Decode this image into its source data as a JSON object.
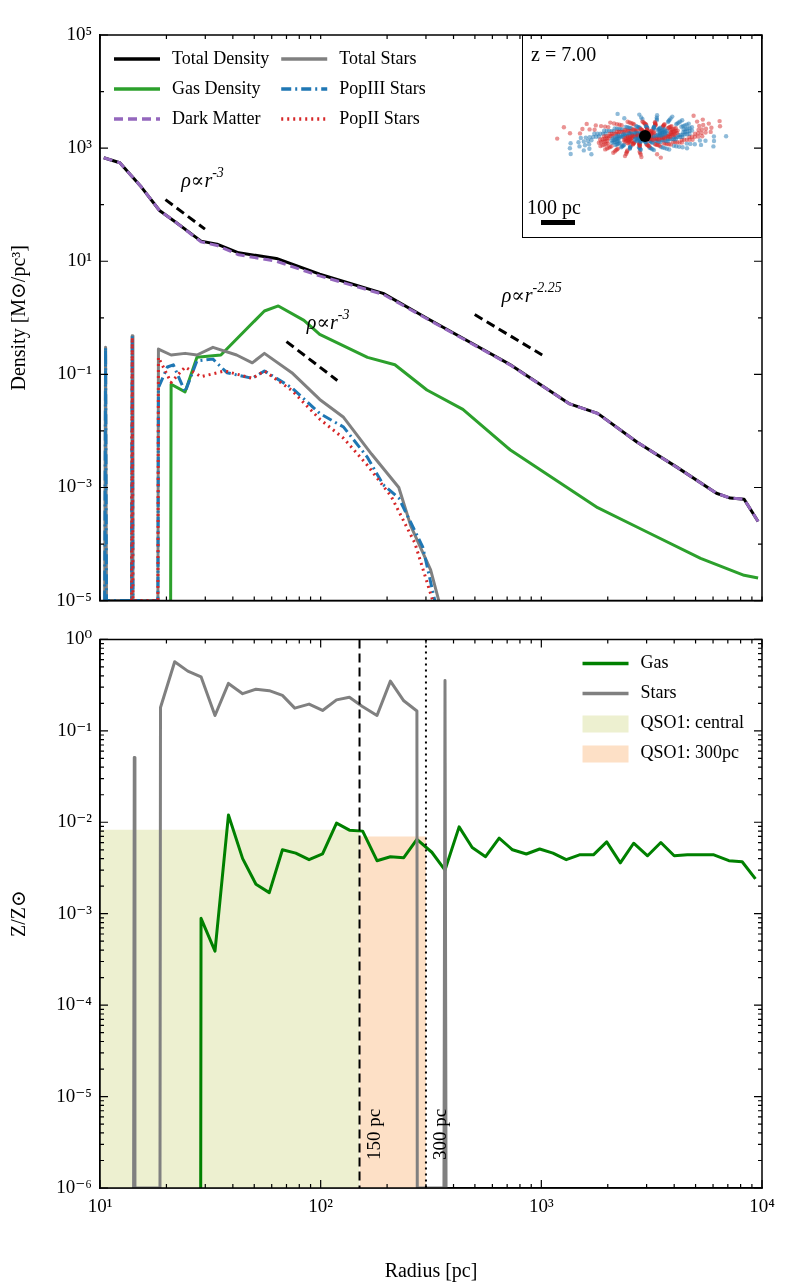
{
  "chart_data": [
    {
      "type": "line",
      "ylabel": "Density [M⊙/pc³]",
      "log": "xy",
      "tick_labels": "y",
      "legend": "top left",
      "xlim": [
        10,
        10000
      ],
      "ylim": [
        1e-05,
        100000
      ],
      "xticks": [
        {
          "value": 10,
          "label": null
        },
        {
          "value": 20,
          "label": null
        },
        {
          "value": 30,
          "label": null
        },
        {
          "value": 40,
          "label": null
        },
        {
          "value": 50,
          "label": null
        },
        {
          "value": 60,
          "label": null
        },
        {
          "value": 70,
          "label": null
        },
        {
          "value": 80,
          "label": null
        },
        {
          "value": 90,
          "label": null
        },
        {
          "value": 100,
          "label": null
        },
        {
          "value": 200,
          "label": null
        },
        {
          "value": 300,
          "label": null
        },
        {
          "value": 400,
          "label": null
        },
        {
          "value": 500,
          "label": null
        },
        {
          "value": 600,
          "label": null
        },
        {
          "value": 700,
          "label": null
        },
        {
          "value": 800,
          "label": null
        },
        {
          "value": 900,
          "label": null
        },
        {
          "value": 1000,
          "label": null
        },
        {
          "value": 2000,
          "label": null
        },
        {
          "value": 3000,
          "label": null
        },
        {
          "value": 4000,
          "label": null
        },
        {
          "value": 5000,
          "label": null
        },
        {
          "value": 6000,
          "label": null
        },
        {
          "value": 7000,
          "label": null
        },
        {
          "value": 8000,
          "label": null
        },
        {
          "value": 9000,
          "label": null
        },
        {
          "value": 10000,
          "label": null
        }
      ],
      "yticks": [
        {
          "value": 1e-05,
          "label": "10⁻⁵"
        },
        {
          "value": 0.0001,
          "label": null
        },
        {
          "value": 0.001,
          "label": "10⁻³"
        },
        {
          "value": 0.01,
          "label": null
        },
        {
          "value": 0.1,
          "label": "10⁻¹"
        },
        {
          "value": 1,
          "label": null
        },
        {
          "value": 10,
          "label": "10¹"
        },
        {
          "value": 100,
          "label": null
        },
        {
          "value": 1000,
          "label": "10³"
        },
        {
          "value": 10000,
          "label": null
        },
        {
          "value": 100000,
          "label": "10⁵"
        }
      ],
      "series": [
        {
          "name": "Total Density",
          "type": "line",
          "color": "#000000",
          "line_style": "solid",
          "x": [
            10.4,
            12.3,
            15.4,
            18.6,
            21.9,
            28.7,
            33.9,
            42.5,
            63,
            99,
            192,
            303,
            724,
            1345,
            1800,
            2720,
            4110,
            6220,
            7180,
            8300,
            9600
          ],
          "values": [
            676,
            550,
            205,
            79,
            50,
            22.7,
            20,
            14.1,
            11.2,
            5.9,
            2.7,
            0.98,
            0.148,
            0.03,
            0.0204,
            0.0063,
            0.00229,
            0.00079,
            0.00065,
            0.00062,
            0.00025
          ]
        },
        {
          "name": "Gas Density",
          "type": "line",
          "color": "#2ca02c",
          "line_style": "solid",
          "x": [
            20.9,
            21,
            24.3,
            27.5,
            35.3,
            55.6,
            64.3,
            84,
            99,
            163,
            217,
            303,
            441,
            724,
            1800,
            2950,
            5270,
            8300,
            9600
          ],
          "values": [
            1e-05,
            0.067,
            0.049,
            0.2,
            0.22,
            1.32,
            1.62,
            0.9,
            0.51,
            0.2,
            0.148,
            0.053,
            0.024,
            0.0046,
            0.00044,
            0.00017,
            5.6e-05,
            2.8e-05,
            2.5e-05
          ]
        },
        {
          "name": "Dark Matter",
          "type": "line",
          "color": "#9467bd",
          "line_style": "dashed",
          "x": [
            10.4,
            12.3,
            15.4,
            18.6,
            21.9,
            28.7,
            33.9,
            42.5,
            63,
            99,
            192,
            303,
            724,
            1345,
            1800,
            2720,
            4110,
            6220,
            7180,
            8300,
            9600
          ],
          "values": [
            676,
            550,
            205,
            79,
            50,
            22,
            19,
            13,
            10,
            5.5,
            2.6,
            0.96,
            0.146,
            0.03,
            0.0203,
            0.0063,
            0.00228,
            0.00079,
            0.00065,
            0.00062,
            0.00025
          ]
        },
        {
          "name": "Total Stars",
          "type": "line",
          "color": "#808080",
          "line_style": "solid",
          "x": [
            10.5,
            10.6,
            10.7,
            13.9,
            14,
            14.1,
            18.3,
            18.4,
            21,
            24.3,
            27.5,
            32.5,
            41.6,
            49,
            55.6,
            74,
            99,
            127,
            170,
            226,
            256,
            315,
            343
          ],
          "values": [
            1e-05,
            0.3,
            1e-05,
            1e-05,
            0.48,
            1e-05,
            1e-05,
            0.28,
            0.22,
            0.235,
            0.22,
            0.3,
            0.22,
            0.16,
            0.235,
            0.107,
            0.036,
            0.0174,
            0.0039,
            0.001,
            0.00021,
            3.5e-05,
            1e-05
          ]
        },
        {
          "name": "PopIII Stars",
          "type": "line",
          "color": "#1f77b4",
          "line_style": "dashdot",
          "x": [
            10.5,
            10.6,
            10.7,
            13.9,
            14,
            14.1,
            18.3,
            18.4,
            20.2,
            21.5,
            24.3,
            27.5,
            32.5,
            37.6,
            49,
            55.6,
            74,
            99,
            127,
            163,
            192,
            226,
            290,
            329
          ],
          "values": [
            1e-05,
            0.3,
            1e-05,
            1e-05,
            0.48,
            1e-05,
            1e-05,
            0.058,
            0.135,
            0.147,
            0.049,
            0.173,
            0.186,
            0.107,
            0.085,
            0.115,
            0.058,
            0.0204,
            0.0117,
            0.0034,
            0.00112,
            0.00065,
            8.9e-05,
            1e-05
          ]
        },
        {
          "name": "PopII Stars",
          "type": "line",
          "color": "#d62728",
          "line_style": "dotted",
          "x": [
            13.9,
            14,
            14.1,
            18.3,
            18.4,
            21,
            24.3,
            28.7,
            36.8,
            49,
            55.6,
            74,
            99,
            127,
            163,
            209,
            267,
            322
          ],
          "values": [
            1e-05,
            0.45,
            1e-05,
            1e-05,
            0.2,
            0.072,
            0.135,
            0.091,
            0.115,
            0.085,
            0.115,
            0.052,
            0.0162,
            0.0074,
            0.00245,
            0.00069,
            0.000105,
            1e-05
          ]
        },
        {
          "type": "line",
          "color": "#000000",
          "line_style": "dashed",
          "x": [
            19.8,
            29.9
          ],
          "values": [
            123,
            37
          ]
        },
        {
          "type": "line",
          "color": "#000000",
          "line_style": "dashed",
          "x": [
            70,
            119
          ],
          "values": [
            0.38,
            0.078
          ]
        },
        {
          "type": "line",
          "color": "#000000",
          "line_style": "dashed",
          "x": [
            499,
            1009
          ],
          "values": [
            1.14,
            0.22
          ]
        }
      ],
      "annotations": [
        "ρ∝r$^{-3}$",
        "ρ∝r$^{-3}$",
        "ρ∝r$^{-2.25}$",
        "z = 7.00",
        "100 pc"
      ]
    },
    {
      "type": "line",
      "xlabel": "Radius [pc]",
      "ylabel": "Z/Z⊙",
      "log": "xy",
      "legend": "top right",
      "xlim": [
        10,
        10000
      ],
      "ylim": [
        1e-06,
        1
      ],
      "xticks": [
        {
          "value": 10,
          "label": "10¹"
        },
        {
          "value": 20,
          "label": null
        },
        {
          "value": 30,
          "label": null
        },
        {
          "value": 40,
          "label": null
        },
        {
          "value": 50,
          "label": null
        },
        {
          "value": 60,
          "label": null
        },
        {
          "value": 70,
          "label": null
        },
        {
          "value": 80,
          "label": null
        },
        {
          "value": 90,
          "label": null
        },
        {
          "value": 100,
          "label": "10²"
        },
        {
          "value": 200,
          "label": null
        },
        {
          "value": 300,
          "label": null
        },
        {
          "value": 400,
          "label": null
        },
        {
          "value": 500,
          "label": null
        },
        {
          "value": 600,
          "label": null
        },
        {
          "value": 700,
          "label": null
        },
        {
          "value": 800,
          "label": null
        },
        {
          "value": 900,
          "label": null
        },
        {
          "value": 1000,
          "label": "10³"
        },
        {
          "value": 2000,
          "label": null
        },
        {
          "value": 3000,
          "label": null
        },
        {
          "value": 4000,
          "label": null
        },
        {
          "value": 5000,
          "label": null
        },
        {
          "value": 6000,
          "label": null
        },
        {
          "value": 7000,
          "label": null
        },
        {
          "value": 8000,
          "label": null
        },
        {
          "value": 9000,
          "label": null
        },
        {
          "value": 10000,
          "label": "10⁴"
        }
      ],
      "yticks": [
        {
          "value": 1e-06,
          "label": "10⁻⁶"
        },
        {
          "value": 2e-06,
          "label": null
        },
        {
          "value": 3e-06,
          "label": null
        },
        {
          "value": 4e-06,
          "label": null
        },
        {
          "value": 5e-06,
          "label": null
        },
        {
          "value": 6e-06,
          "label": null
        },
        {
          "value": 7e-06,
          "label": null
        },
        {
          "value": 8e-06,
          "label": null
        },
        {
          "value": 9e-06,
          "label": null
        },
        {
          "value": 1e-05,
          "label": "10⁻⁵"
        },
        {
          "value": 2e-05,
          "label": null
        },
        {
          "value": 3e-05,
          "label": null
        },
        {
          "value": 4e-05,
          "label": null
        },
        {
          "value": 5e-05,
          "label": null
        },
        {
          "value": 6e-05,
          "label": null
        },
        {
          "value": 7e-05,
          "label": null
        },
        {
          "value": 8e-05,
          "label": null
        },
        {
          "value": 9e-05,
          "label": null
        },
        {
          "value": 0.0001,
          "label": "10⁻⁴"
        },
        {
          "value": 0.0002,
          "label": null
        },
        {
          "value": 0.0003,
          "label": null
        },
        {
          "value": 0.0004,
          "label": null
        },
        {
          "value": 0.0005,
          "label": null
        },
        {
          "value": 0.0006,
          "label": null
        },
        {
          "value": 0.0007,
          "label": null
        },
        {
          "value": 0.0008,
          "label": null
        },
        {
          "value": 0.0009,
          "label": null
        },
        {
          "value": 0.001,
          "label": "10⁻³"
        },
        {
          "value": 0.002,
          "label": null
        },
        {
          "value": 0.003,
          "label": null
        },
        {
          "value": 0.004,
          "label": null
        },
        {
          "value": 0.005,
          "label": null
        },
        {
          "value": 0.006,
          "label": null
        },
        {
          "value": 0.007,
          "label": null
        },
        {
          "value": 0.008,
          "label": null
        },
        {
          "value": 0.009,
          "label": null
        },
        {
          "value": 0.01,
          "label": "10⁻²"
        },
        {
          "value": 0.02,
          "label": null
        },
        {
          "value": 0.03,
          "label": null
        },
        {
          "value": 0.04,
          "label": null
        },
        {
          "value": 0.05,
          "label": null
        },
        {
          "value": 0.06,
          "label": null
        },
        {
          "value": 0.07,
          "label": null
        },
        {
          "value": 0.08,
          "label": null
        },
        {
          "value": 0.09,
          "label": null
        },
        {
          "value": 0.1,
          "label": "10⁻¹"
        },
        {
          "value": 0.2,
          "label": null
        },
        {
          "value": 0.3,
          "label": null
        },
        {
          "value": 0.4,
          "label": null
        },
        {
          "value": 0.5,
          "label": null
        },
        {
          "value": 0.6,
          "label": null
        },
        {
          "value": 0.7,
          "label": null
        },
        {
          "value": 0.8,
          "label": null
        },
        {
          "value": 0.9,
          "label": null
        },
        {
          "value": 1,
          "label": "10⁰"
        }
      ],
      "series": [
        {
          "name": "Gas",
          "type": "line",
          "color": "#008000",
          "line_style": "solid",
          "x": [
            28.6,
            28.7,
            33.2,
            38.2,
            44.3,
            50.9,
            58.5,
            67.1,
            77.1,
            88.6,
            102,
            118,
            135,
            155,
            180,
            207,
            238,
            273,
            319,
            366,
            424,
            486,
            559,
            644,
            740,
            855,
            983,
            1129,
            1297,
            1489,
            1722,
            1978,
            2280,
            2620,
            3030,
            3480,
            4000,
            4590,
            6050,
            7080,
            8130,
            9340
          ],
          "values": [
            1e-06,
            0.00089,
            0.00039,
            0.012,
            0.004,
            0.0021,
            0.0017,
            0.005,
            0.0046,
            0.0039,
            0.0045,
            0.0098,
            0.0082,
            0.008,
            0.0038,
            0.0042,
            0.0041,
            0.0065,
            0.0047,
            0.003,
            0.0089,
            0.0053,
            0.0042,
            0.0067,
            0.005,
            0.0045,
            0.0051,
            0.0046,
            0.0039,
            0.0044,
            0.0044,
            0.0061,
            0.0036,
            0.0059,
            0.0043,
            0.006,
            0.0043,
            0.0044,
            0.0044,
            0.0038,
            0.0037,
            0.0024
          ]
        },
        {
          "name": "Stars",
          "type": "line",
          "color": "#808080",
          "line_style": "solid",
          "x": [
            14.2,
            14.3,
            14.4,
            18.7,
            18.8,
            21.8,
            25,
            28.7,
            33.2,
            38.2,
            44.3,
            50.9,
            58.5,
            67.1,
            76.3,
            88.6,
            102,
            118,
            135,
            154,
            180,
            207,
            238,
            273,
            274,
            362,
            366,
            370
          ],
          "values": [
            1e-06,
            0.051,
            1e-06,
            1e-06,
            0.18,
            0.57,
            0.45,
            0.39,
            0.147,
            0.33,
            0.255,
            0.285,
            0.275,
            0.244,
            0.177,
            0.196,
            0.167,
            0.218,
            0.233,
            0.186,
            0.147,
            0.35,
            0.213,
            0.165,
            1e-06,
            1e-06,
            0.355,
            1e-06
          ]
        },
        {
          "name": "QSO1: central",
          "type": "area",
          "color": "#edf0d0",
          "x": [
            10,
            150
          ],
          "values": [
            0.0083,
            0.0083
          ]
        },
        {
          "name": "QSO1: 300pc",
          "type": "area",
          "color": "#fde0c6",
          "x": [
            150,
            300
          ],
          "values": [
            0.007,
            0.007
          ]
        }
      ],
      "ref_lines": [
        {
          "axis": "x",
          "value": 150,
          "label": "150 pc",
          "color": "#000000",
          "line_style": "dashed"
        },
        {
          "axis": "x",
          "value": 300,
          "label": "300 pc",
          "color": "#000000",
          "line_style": "dotted"
        }
      ]
    }
  ]
}
